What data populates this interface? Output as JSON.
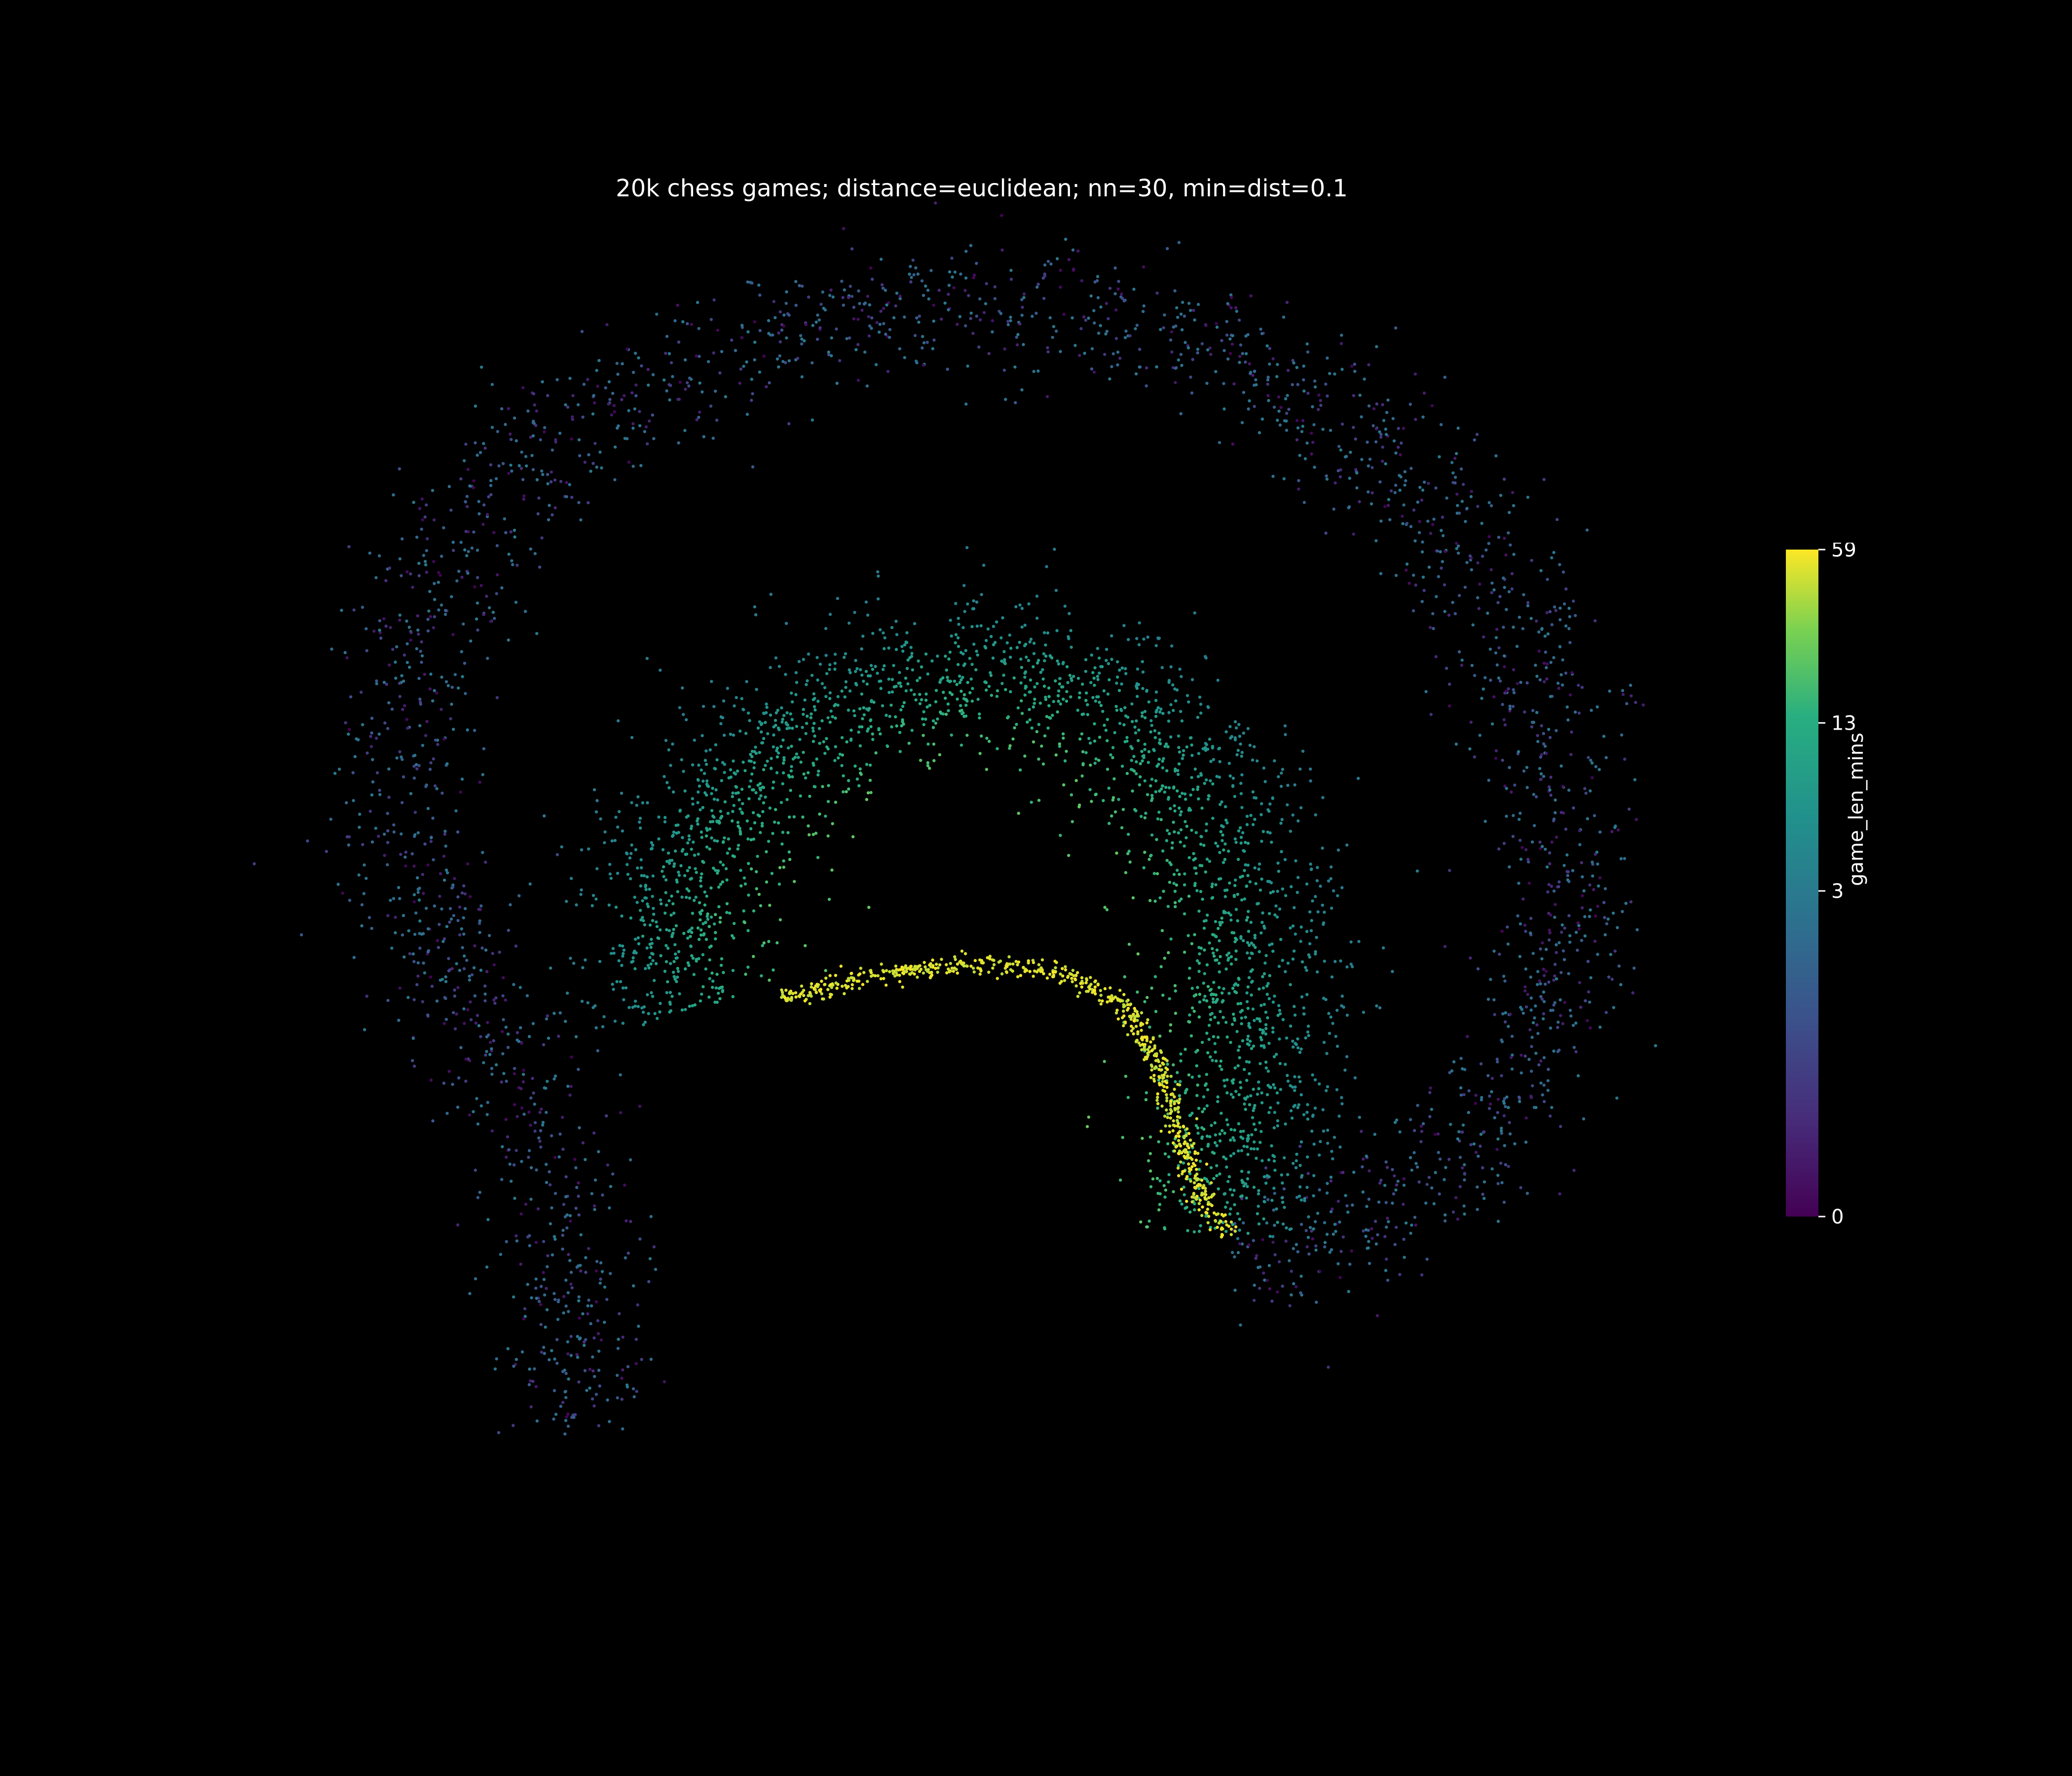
{
  "chart_data": {
    "type": "scatter",
    "title": "20k chess games; distance=euclidean; nn=30, min=dist=0.1",
    "xlabel": "",
    "ylabel": "",
    "axes_visible": false,
    "grid": false,
    "background": "#000000",
    "point_count": 20000,
    "colormap": "viridis",
    "colorbar": {
      "label": "game_len_mins",
      "ticks": [
        0,
        3,
        13,
        59
      ],
      "tick_labels": [
        "0",
        "3",
        "13",
        "59"
      ],
      "range": [
        0,
        59
      ],
      "scale": "symlog",
      "placement": "right"
    },
    "series": [
      {
        "structure": "outer arc with tail",
        "value_range": [
          0,
          3
        ],
        "path": [
          [
            -2.6,
            -5.2
          ],
          [
            -2.5,
            -3.8
          ],
          [
            -2.9,
            -2.0
          ],
          [
            -3.6,
            -0.5
          ],
          [
            -4.0,
            1.2
          ],
          [
            -3.8,
            3.0
          ],
          [
            -3.0,
            4.4
          ],
          [
            -1.8,
            5.3
          ],
          [
            -0.4,
            5.8
          ],
          [
            1.0,
            5.9
          ],
          [
            2.4,
            5.6
          ],
          [
            3.6,
            4.8
          ],
          [
            4.6,
            3.6
          ],
          [
            5.2,
            2.2
          ],
          [
            5.4,
            0.6
          ],
          [
            5.3,
            -0.8
          ],
          [
            4.9,
            -2.0
          ],
          [
            4.2,
            -2.9
          ],
          [
            3.4,
            -3.3
          ],
          [
            2.7,
            -3.35
          ]
        ]
      },
      {
        "structure": "inner arc",
        "value_range": [
          3,
          25
        ],
        "path": [
          [
            -1.6,
            -1.0
          ],
          [
            -1.9,
            -0.2
          ],
          [
            -1.5,
            0.9
          ],
          [
            -0.7,
            1.8
          ],
          [
            0.4,
            2.4
          ],
          [
            1.4,
            2.3
          ],
          [
            2.2,
            1.6
          ],
          [
            2.7,
            0.5
          ],
          [
            2.9,
            -0.8
          ],
          [
            2.8,
            -2.0
          ],
          [
            2.7,
            -3.2
          ]
        ]
      },
      {
        "structure": "long-game ridge",
        "value_range": [
          40,
          59
        ],
        "path": [
          [
            -0.9,
            -0.9
          ],
          [
            -0.2,
            -0.65
          ],
          [
            0.6,
            -0.55
          ],
          [
            1.3,
            -0.6
          ],
          [
            1.85,
            -0.95
          ],
          [
            2.15,
            -1.6
          ],
          [
            2.3,
            -2.3
          ],
          [
            2.5,
            -2.9
          ],
          [
            2.7,
            -3.2
          ]
        ]
      }
    ]
  }
}
